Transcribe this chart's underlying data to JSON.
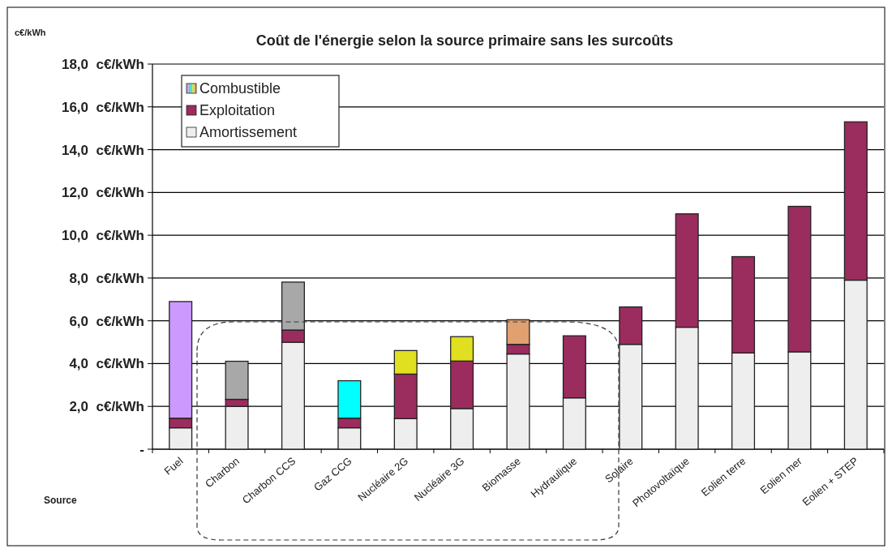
{
  "chart_data": {
    "type": "bar",
    "stacked": true,
    "title": "Coût de l'énergie selon la source primaire sans les surcoûts",
    "ylabel": "c€/kWh",
    "xlabel": "Source",
    "categories": [
      "Fuel",
      "Charbon",
      "Charbon CCS",
      "Gaz CCG",
      "Nucléaire 2G",
      "Nucléaire 3G",
      "Biomasse",
      "Hydraulique",
      "Solaire",
      "Photovoltaïque",
      "Eolien terre",
      "Eolien mer",
      "Eolien + STEP"
    ],
    "series": [
      {
        "name": "Amortissement",
        "color": "#eeeeee",
        "values": [
          1.0,
          2.0,
          5.0,
          1.0,
          1.43,
          1.9,
          4.45,
          2.4,
          4.9,
          5.7,
          4.5,
          4.55,
          7.9
        ]
      },
      {
        "name": "Exploitation",
        "color": "#9b2c5e",
        "values": [
          0.45,
          0.33,
          0.57,
          0.45,
          2.08,
          2.22,
          0.45,
          2.9,
          1.75,
          5.3,
          4.5,
          6.8,
          7.4
        ]
      },
      {
        "name": "Combustible",
        "colors": [
          "#cc99ff",
          "#a8a8a8",
          "#a8a8a8",
          "#00ffff",
          "#e0e020",
          "#e0e020",
          "#e0a070",
          null,
          null,
          null,
          null,
          null,
          null
        ],
        "values": [
          5.45,
          1.78,
          2.24,
          1.75,
          1.1,
          1.14,
          1.15,
          null,
          null,
          null,
          null,
          null,
          null
        ]
      }
    ],
    "ylim": [
      0,
      18
    ],
    "yticks": [
      {
        "value": 0,
        "label": "-"
      },
      {
        "value": 2,
        "label": "2,0  c€/kWh"
      },
      {
        "value": 4,
        "label": "4,0  c€/kWh"
      },
      {
        "value": 6,
        "label": "6,0  c€/kWh"
      },
      {
        "value": 8,
        "label": "8,0  c€/kWh"
      },
      {
        "value": 10,
        "label": "10,0  c€/kWh"
      },
      {
        "value": 12,
        "label": "12,0  c€/kWh"
      },
      {
        "value": 14,
        "label": "14,0  c€/kWh"
      },
      {
        "value": 16,
        "label": "16,0  c€/kWh"
      },
      {
        "value": 18,
        "label": "18,0  c€/kWh"
      }
    ],
    "grid": "y",
    "legend": "top left"
  }
}
